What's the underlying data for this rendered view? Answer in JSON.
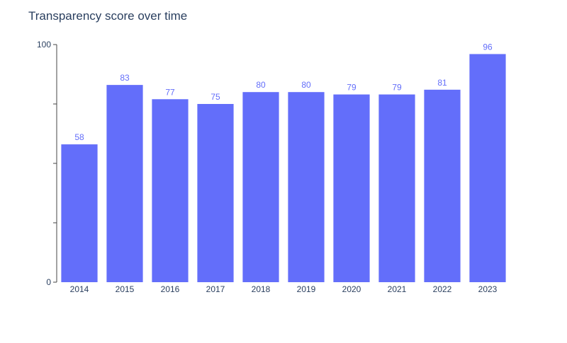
{
  "chart_data": {
    "type": "bar",
    "title": "Transparency score over time",
    "xlabel": "",
    "ylabel": "",
    "categories": [
      "2014",
      "2015",
      "2016",
      "2017",
      "2018",
      "2019",
      "2020",
      "2021",
      "2022",
      "2023"
    ],
    "values": [
      58,
      83,
      77,
      75,
      80,
      80,
      79,
      79,
      81,
      96
    ],
    "value_labels": [
      "58",
      "83",
      "77",
      "75",
      "80",
      "80",
      "79",
      "79",
      "81",
      "96"
    ],
    "ylim": [
      0,
      100
    ],
    "y_tick_values": [
      0,
      25,
      50,
      75,
      100
    ],
    "y_tick_labels": [
      "0",
      "",
      "",
      "",
      "100"
    ],
    "bar_color": "#636efa",
    "label_color": "#636efa",
    "axis_text_color": "#2a3f5f",
    "axis_line_color": "#444444",
    "grid": false,
    "legend": "none"
  }
}
